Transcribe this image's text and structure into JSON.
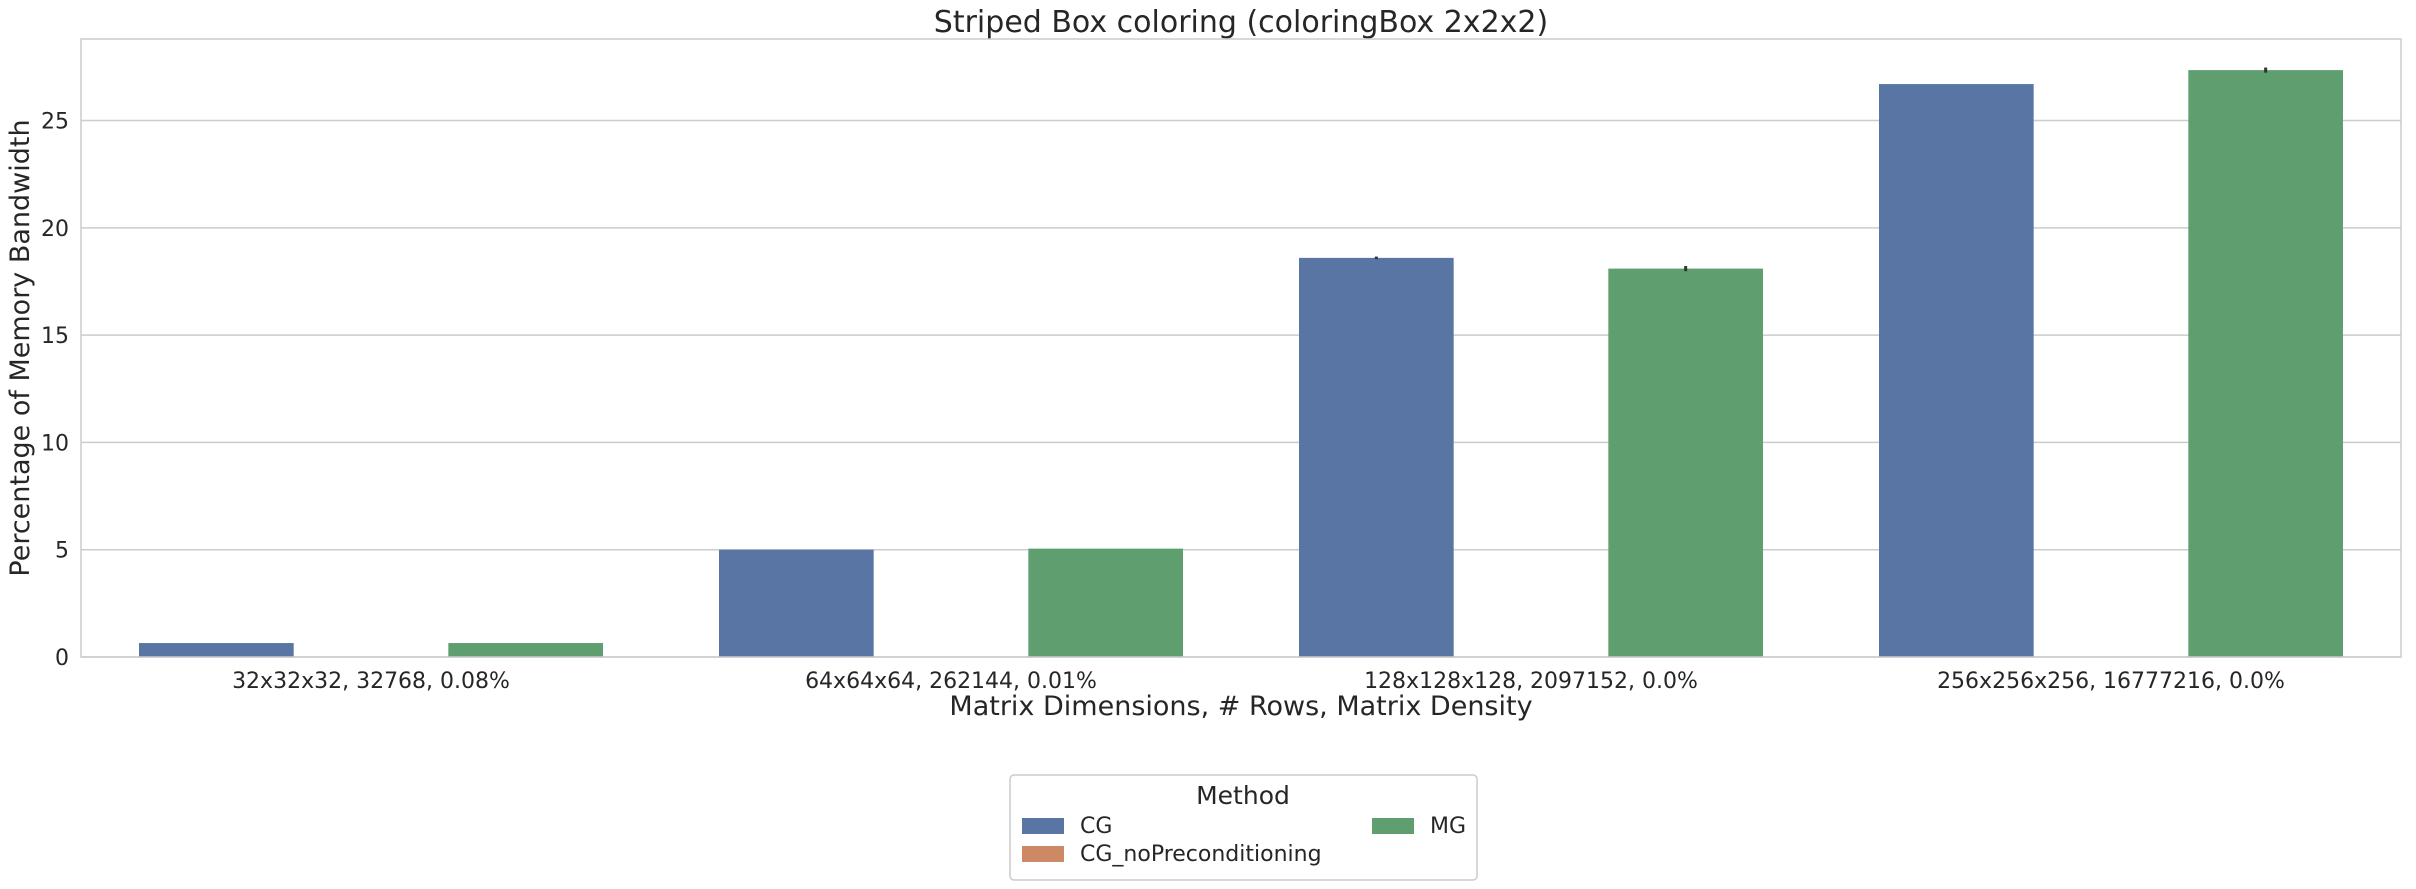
{
  "chart_data": {
    "type": "bar",
    "title": "Striped Box coloring (coloringBox 2x2x2)",
    "xlabel": "Matrix Dimensions, # Rows, Matrix Density",
    "ylabel": "Percentage of Memory Bandwidth",
    "categories": [
      "32x32x32, 32768, 0.08%",
      "64x64x64, 262144, 0.01%",
      "128x128x128, 2097152, 0.0%",
      "256x256x256, 16777216, 0.0%"
    ],
    "series": [
      {
        "name": "CG",
        "color": "#5875a4",
        "values": [
          0.65,
          5.0,
          18.6,
          26.7
        ],
        "error": [
          0,
          0,
          0.06,
          0
        ]
      },
      {
        "name": "CG_noPreconditioning",
        "color": "#cc8963",
        "values": [
          0,
          0,
          0,
          0
        ],
        "error": [
          0,
          0,
          0,
          0
        ]
      },
      {
        "name": "MG",
        "color": "#5f9e6e",
        "values": [
          0.65,
          5.05,
          18.1,
          27.35
        ],
        "error": [
          0,
          0,
          0.12,
          0.12
        ]
      }
    ],
    "ylim": [
      0,
      28.8
    ],
    "yticks": [
      0,
      5,
      10,
      15,
      20,
      25
    ],
    "grid": true,
    "legend": {
      "title": "Method",
      "placement": "bottom-center",
      "columns": 2
    }
  }
}
